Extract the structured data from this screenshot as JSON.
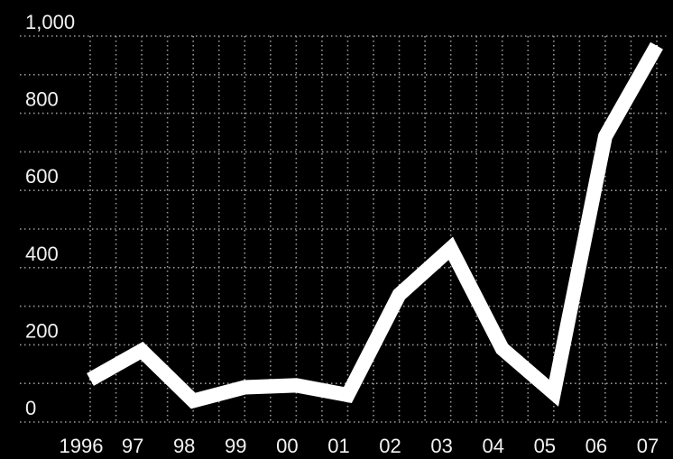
{
  "chart_data": {
    "type": "line",
    "categories": [
      "1996",
      "97",
      "98",
      "99",
      "00",
      "01",
      "02",
      "03",
      "04",
      "05",
      "06",
      "07"
    ],
    "values": [
      110,
      185,
      55,
      90,
      95,
      70,
      330,
      450,
      190,
      75,
      740,
      975
    ],
    "yticks": [
      "0",
      "200",
      "400",
      "600",
      "800",
      "1,000"
    ],
    "ylim": [
      0,
      1000
    ],
    "grid": true,
    "colors": {
      "background": "#000000",
      "line": "#ffffff",
      "grid": "#9a9a9a",
      "text": "#f2f2f2"
    }
  }
}
